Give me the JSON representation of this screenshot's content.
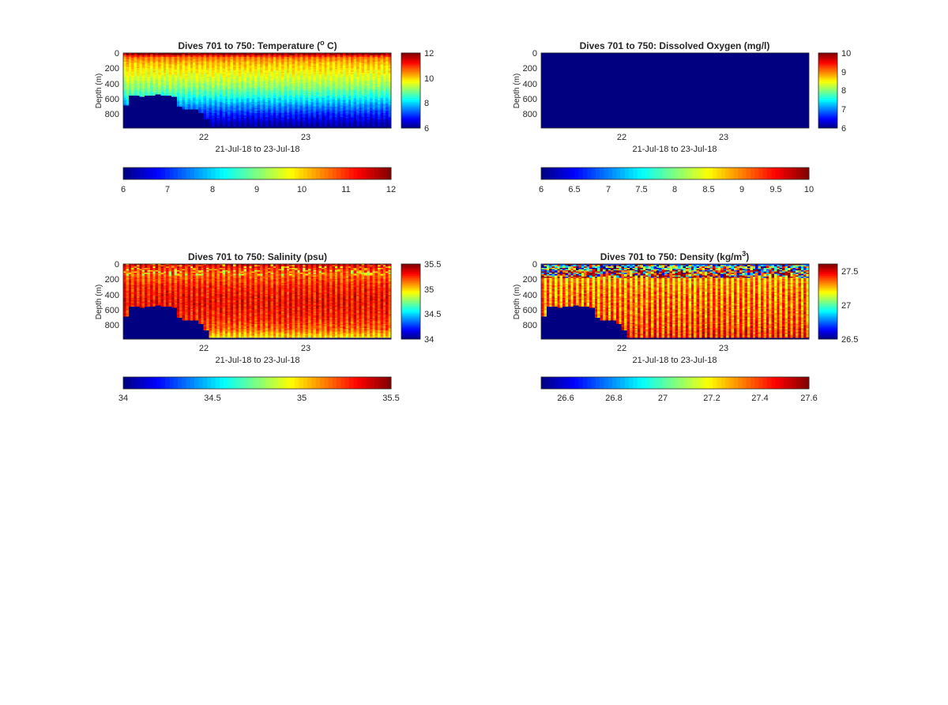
{
  "figure": {
    "background": "#ffffff"
  },
  "chart_data": [
    {
      "type": "heatmap",
      "panel": "temperature",
      "title": "Dives 701 to 750: Temperature (",
      "title_sup": "o",
      "title_suffix": " C)",
      "xlabel": "21-Jul-18 to 23-Jul-18",
      "ylabel": "Depth (m)",
      "xticks": [
        "22",
        "23"
      ],
      "yticks": [
        "0",
        "200",
        "400",
        "600",
        "800"
      ],
      "ylim": [
        0,
        980
      ],
      "clim": [
        6,
        12
      ],
      "colorbar_ticks": [
        "6",
        "8",
        "10",
        "12"
      ],
      "colorbar_h_ticks": [
        "6",
        "7",
        "8",
        "9",
        "10",
        "11",
        "12"
      ],
      "dives": 50,
      "bottom_depth_m": [
        680,
        550,
        560,
        570,
        560,
        550,
        545,
        550,
        550,
        570,
        700,
        730,
        740,
        740,
        780,
        860,
        960,
        960,
        960,
        960,
        960,
        960,
        960,
        960,
        960,
        960,
        960,
        960,
        960,
        960,
        960,
        960,
        960,
        960,
        960,
        960,
        960,
        960,
        960,
        960,
        960,
        960,
        960,
        960,
        960,
        960,
        960,
        960,
        960,
        960
      ],
      "profile": {
        "depth_m": [
          0,
          30,
          60,
          150,
          250,
          350,
          450,
          550,
          650,
          750,
          850,
          960
        ],
        "value": [
          11.8,
          11.2,
          10.5,
          10.0,
          9.7,
          9.4,
          9.0,
          8.5,
          7.8,
          7.2,
          6.6,
          6.1
        ]
      }
    },
    {
      "type": "heatmap",
      "panel": "oxygen",
      "title": "Dives 701 to 750: Dissolved Oxygen (mg/l)",
      "xlabel": "21-Jul-18 to 23-Jul-18",
      "ylabel": "Depth (m)",
      "xticks": [
        "22",
        "23"
      ],
      "yticks": [
        "0",
        "200",
        "400",
        "600",
        "800"
      ],
      "ylim": [
        0,
        980
      ],
      "clim": [
        6,
        10
      ],
      "colorbar_ticks": [
        "6",
        "7",
        "8",
        "9",
        "10"
      ],
      "colorbar_h_ticks": [
        "6",
        "6.5",
        "7",
        "7.5",
        "8",
        "8.5",
        "9",
        "9.5",
        "10"
      ],
      "fill_value": 6
    },
    {
      "type": "heatmap",
      "panel": "salinity",
      "title": "Dives 701 to 750: Salinity (psu)",
      "xlabel": "21-Jul-18 to 23-Jul-18",
      "ylabel": "Depth (m)",
      "xticks": [
        "22",
        "23"
      ],
      "yticks": [
        "0",
        "200",
        "400",
        "600",
        "800"
      ],
      "ylim": [
        0,
        980
      ],
      "clim": [
        34,
        35.5
      ],
      "colorbar_ticks": [
        "34",
        "34.5",
        "35",
        "35.5"
      ],
      "colorbar_h_ticks": [
        "34",
        "34.5",
        "35",
        "35.5"
      ],
      "dives": 50,
      "bottom_depth_m": [
        680,
        550,
        560,
        570,
        560,
        550,
        545,
        550,
        550,
        570,
        700,
        730,
        740,
        740,
        780,
        860,
        960,
        960,
        960,
        960,
        960,
        960,
        960,
        960,
        960,
        960,
        960,
        960,
        960,
        960,
        960,
        960,
        960,
        960,
        960,
        960,
        960,
        960,
        960,
        960,
        960,
        960,
        960,
        960,
        960,
        960,
        960,
        960,
        960,
        960
      ],
      "profile": {
        "depth_m": [
          0,
          60,
          150,
          300,
          500,
          700,
          850,
          960
        ],
        "value": [
          35.45,
          35.3,
          35.2,
          35.3,
          35.35,
          35.3,
          35.2,
          35.0
        ]
      }
    },
    {
      "type": "heatmap",
      "panel": "density",
      "title": "Dives 701 to 750: Density (kg/m",
      "title_sup": "3",
      "title_suffix": ")",
      "xlabel": "21-Jul-18 to 23-Jul-18",
      "ylabel": "Depth (m)",
      "xticks": [
        "22",
        "23"
      ],
      "yticks": [
        "0",
        "200",
        "400",
        "600",
        "800"
      ],
      "ylim": [
        0,
        980
      ],
      "clim": [
        26.5,
        27.6
      ],
      "colorbar_ticks": [
        "26.5",
        "27",
        "27.5"
      ],
      "colorbar_h_ticks": [
        "26.6",
        "26.8",
        "27",
        "27.2",
        "27.4",
        "27.6"
      ],
      "dives": 50,
      "bottom_depth_m": [
        680,
        550,
        560,
        570,
        560,
        550,
        545,
        550,
        550,
        570,
        700,
        730,
        740,
        740,
        780,
        860,
        960,
        960,
        960,
        960,
        960,
        960,
        960,
        960,
        960,
        960,
        960,
        960,
        960,
        960,
        960,
        960,
        960,
        960,
        960,
        960,
        960,
        960,
        960,
        960,
        960,
        960,
        960,
        960,
        960,
        960,
        960,
        960,
        960,
        960
      ],
      "profile": {
        "depth_m": [
          0,
          30,
          100,
          200,
          400,
          600,
          800,
          960
        ],
        "value": [
          26.8,
          27.0,
          27.3,
          27.35,
          27.4,
          27.42,
          27.45,
          27.5
        ]
      }
    }
  ]
}
